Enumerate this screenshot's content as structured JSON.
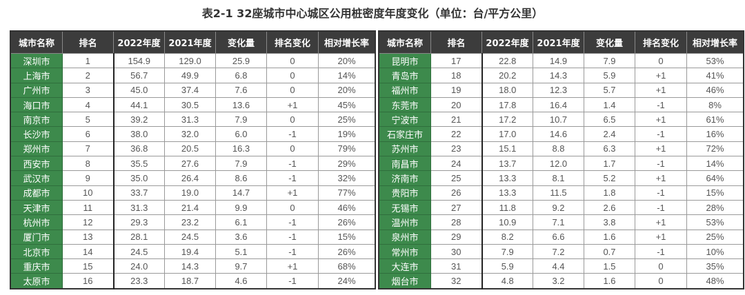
{
  "title": "表2-1 32座城市中心城区公用桩密度年度变化（单位：台/平方公里）",
  "colors": {
    "header_bg": "#3c3c3c",
    "city_bg": "#3d8a4c"
  },
  "headers": [
    "城市名称",
    "排名",
    "2022年度",
    "2021年度",
    "变化量",
    "排名变化",
    "相对增长率"
  ],
  "left_rows": [
    [
      "深圳市",
      "1",
      "154.9",
      "129.0",
      "25.9",
      "0",
      "20%"
    ],
    [
      "上海市",
      "2",
      "56.7",
      "49.9",
      "6.8",
      "0",
      "14%"
    ],
    [
      "广州市",
      "3",
      "45.0",
      "37.4",
      "7.6",
      "0",
      "20%"
    ],
    [
      "海口市",
      "4",
      "44.1",
      "30.5",
      "13.6",
      "+1",
      "45%"
    ],
    [
      "南京市",
      "5",
      "39.2",
      "31.3",
      "7.9",
      "0",
      "25%"
    ],
    [
      "长沙市",
      "6",
      "38.0",
      "32.0",
      "6.0",
      "-1",
      "19%"
    ],
    [
      "郑州市",
      "7",
      "36.8",
      "20.5",
      "16.3",
      "0",
      "79%"
    ],
    [
      "西安市",
      "8",
      "35.5",
      "27.6",
      "7.9",
      "-1",
      "29%"
    ],
    [
      "武汉市",
      "9",
      "35.0",
      "26.4",
      "8.6",
      "-1",
      "32%"
    ],
    [
      "成都市",
      "10",
      "33.7",
      "19.0",
      "14.7",
      "+1",
      "77%"
    ],
    [
      "天津市",
      "11",
      "31.3",
      "21.4",
      "9.9",
      "0",
      "46%"
    ],
    [
      "杭州市",
      "12",
      "29.3",
      "23.2",
      "6.1",
      "-1",
      "26%"
    ],
    [
      "厦门市",
      "13",
      "28.1",
      "24.5",
      "3.6",
      "-1",
      "15%"
    ],
    [
      "北京市",
      "14",
      "24.5",
      "19.4",
      "5.1",
      "-1",
      "26%"
    ],
    [
      "重庆市",
      "15",
      "24.0",
      "14.3",
      "9.7",
      "+1",
      "68%"
    ],
    [
      "太原市",
      "16",
      "23.3",
      "18.7",
      "4.6",
      "-1",
      "24%"
    ]
  ],
  "right_rows": [
    [
      "昆明市",
      "17",
      "22.8",
      "14.9",
      "7.9",
      "0",
      "53%"
    ],
    [
      "青岛市",
      "18",
      "20.2",
      "14.3",
      "5.9",
      "+1",
      "41%"
    ],
    [
      "福州市",
      "19",
      "18.0",
      "12.3",
      "5.7",
      "+1",
      "46%"
    ],
    [
      "东莞市",
      "20",
      "17.8",
      "16.4",
      "1.4",
      "-1",
      "8%"
    ],
    [
      "宁波市",
      "21",
      "17.2",
      "10.7",
      "6.5",
      "+1",
      "61%"
    ],
    [
      "石家庄市",
      "22",
      "17.0",
      "14.6",
      "2.4",
      "-1",
      "16%"
    ],
    [
      "苏州市",
      "23",
      "15.1",
      "8.8",
      "6.3",
      "+1",
      "72%"
    ],
    [
      "南昌市",
      "24",
      "13.7",
      "12.0",
      "1.7",
      "-1",
      "14%"
    ],
    [
      "济南市",
      "25",
      "13.3",
      "8.1",
      "5.2",
      "+1",
      "64%"
    ],
    [
      "贵阳市",
      "26",
      "13.3",
      "11.5",
      "1.8",
      "-1",
      "15%"
    ],
    [
      "无锡市",
      "27",
      "11.8",
      "9.2",
      "2.6",
      "-1",
      "28%"
    ],
    [
      "温州市",
      "28",
      "10.9",
      "7.1",
      "3.8",
      "+1",
      "53%"
    ],
    [
      "泉州市",
      "29",
      "8.2",
      "6.6",
      "1.6",
      "+1",
      "25%"
    ],
    [
      "常州市",
      "30",
      "7.9",
      "7.2",
      "0.7",
      "-1",
      "10%"
    ],
    [
      "大连市",
      "31",
      "5.9",
      "4.4",
      "1.5",
      "0",
      "35%"
    ],
    [
      "烟台市",
      "32",
      "4.8",
      "3.2",
      "1.6",
      "0",
      "48%"
    ]
  ]
}
